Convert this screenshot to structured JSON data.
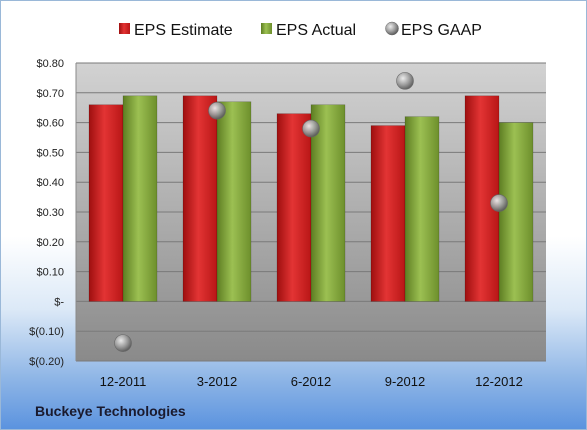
{
  "company_label": "Buckeye Technologies",
  "colors": {
    "estimate": "#d42020",
    "actual": "#7fa23a",
    "gaap": "#9a9a9a"
  },
  "chart_data": {
    "type": "bar",
    "categories": [
      "12-2011",
      "3-2012",
      "6-2012",
      "9-2012",
      "12-2012"
    ],
    "series": [
      {
        "name": "EPS Estimate",
        "type": "bar",
        "values": [
          0.66,
          0.69,
          0.63,
          0.59,
          0.69
        ]
      },
      {
        "name": "EPS Actual",
        "type": "bar",
        "values": [
          0.69,
          0.67,
          0.66,
          0.62,
          0.6
        ]
      },
      {
        "name": "EPS GAAP",
        "type": "scatter",
        "values": [
          -0.14,
          0.64,
          0.58,
          0.74,
          0.33
        ]
      }
    ],
    "ylim": [
      -0.2,
      0.8
    ],
    "yticks": [
      0.8,
      0.7,
      0.6,
      0.5,
      0.4,
      0.3,
      0.2,
      0.1,
      0,
      -0.1,
      -0.2
    ],
    "ytick_labels": [
      "$0.80",
      "$0.70",
      "$0.60",
      "$0.50",
      "$0.40",
      "$0.30",
      "$0.20",
      "$0.10",
      "$-",
      "$(0.10)",
      "$(0.20)"
    ],
    "grid": true,
    "legend_position": "top"
  }
}
